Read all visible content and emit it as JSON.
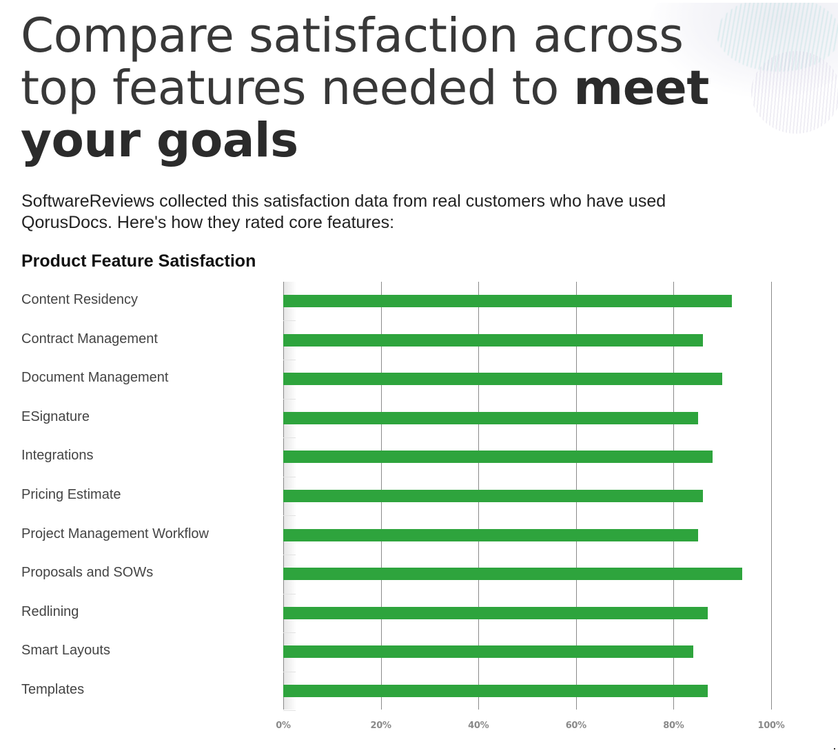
{
  "headline": {
    "line1": "Compare satisfaction across",
    "line2_light": "top features needed to ",
    "line2_bold": "meet",
    "line3_bold": "your goals"
  },
  "intro": {
    "text": "SoftwareReviews collected this satisfaction data from real customers who have used QorusDocs. Here's how they rated core features:"
  },
  "chart_title": "Product Feature Satisfaction",
  "colors": {
    "bar": "#2ea43d",
    "gridline": "#8a8a8a",
    "tick_label": "#8a8a8a"
  },
  "chart_data": {
    "type": "bar",
    "orientation": "horizontal",
    "title": "Product Feature Satisfaction",
    "xlabel": "",
    "ylabel": "",
    "xlim": [
      0,
      100
    ],
    "x_ticks": [
      "0%",
      "20%",
      "40%",
      "60%",
      "80%",
      "100%"
    ],
    "grid": true,
    "legend": null,
    "categories": [
      "Content Residency",
      "Contract Management",
      "Document Management",
      "ESignature",
      "Integrations",
      "Pricing Estimate",
      "Project Management Workflow",
      "Proposals and SOWs",
      "Redlining",
      "Smart Layouts",
      "Templates"
    ],
    "values": [
      92,
      86,
      90,
      85,
      88,
      86,
      85,
      94,
      87,
      84,
      87
    ],
    "unit": "%"
  }
}
